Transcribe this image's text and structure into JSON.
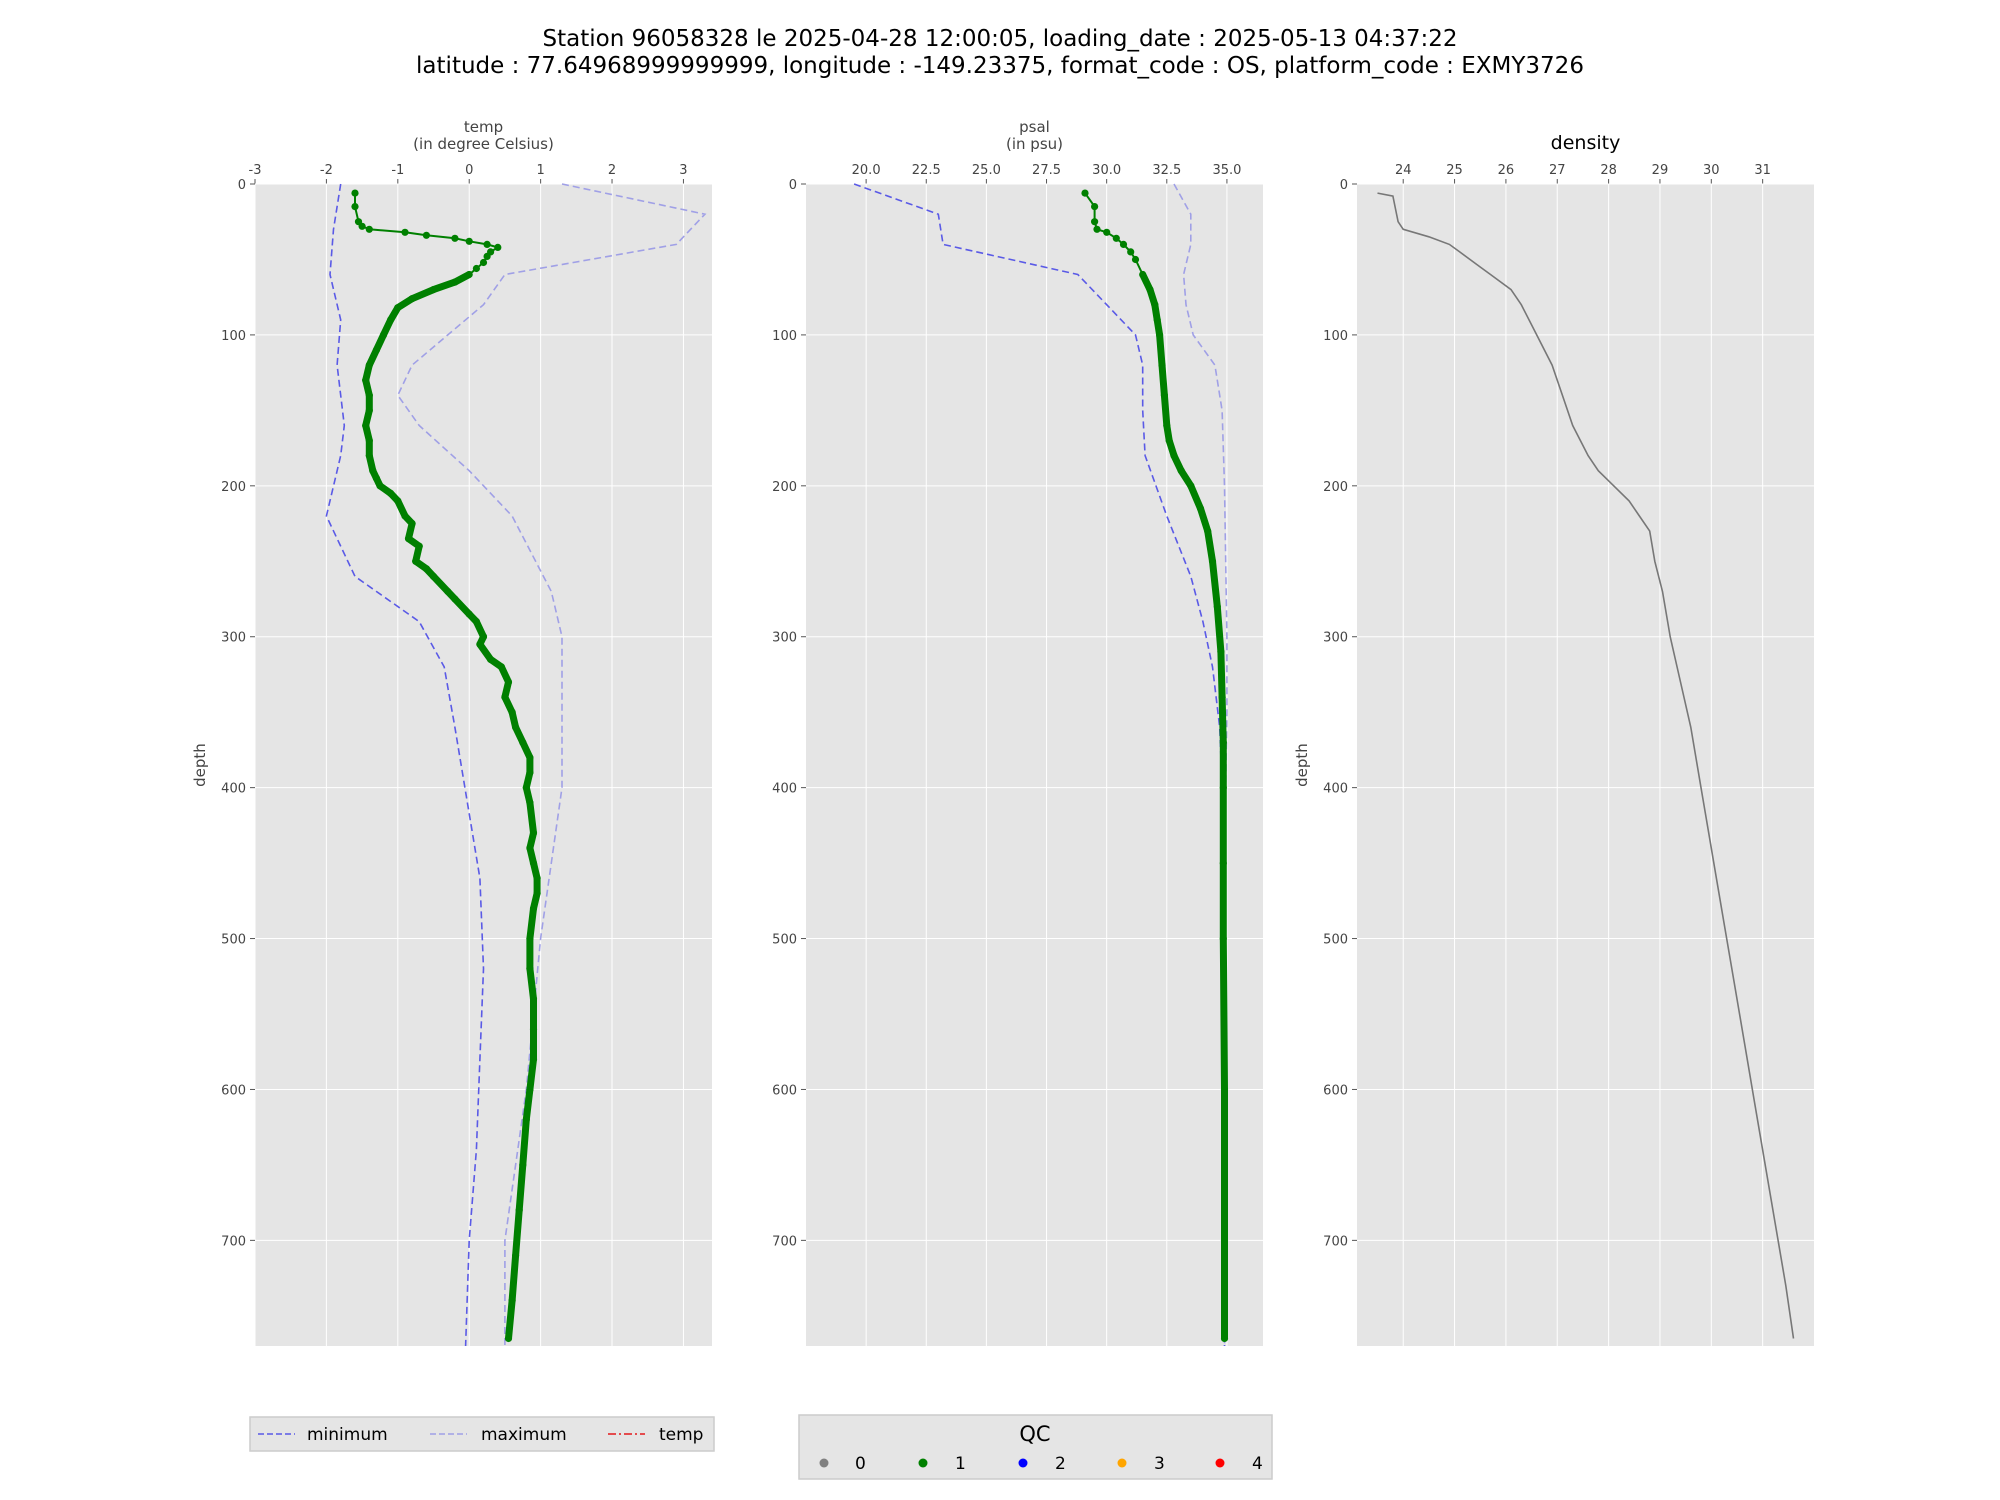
{
  "title": {
    "line1": "Station 96058328 le 2025-04-28 12:00:05, loading_date : 2025-05-13 04:37:22",
    "line2": "latitude : 77.64968999999999, longitude : -149.23375, format_code : OS, platform_code : EXMY3726"
  },
  "colors": {
    "panel_bg": "#e5e5e5",
    "grid": "#ffffff",
    "minimum": "#5a5ae6",
    "maximum": "#a0a0e6",
    "temp_line": "#e41a1c",
    "qc1": "#008000",
    "density": "#777777"
  },
  "legend_left": {
    "items": [
      {
        "label": "minimum",
        "style": "dashed",
        "color": "#5a5ae6"
      },
      {
        "label": "maximum",
        "style": "dashed",
        "color": "#a0a0e6"
      },
      {
        "label": "temp",
        "style": "dashdot",
        "color": "#e41a1c"
      }
    ]
  },
  "legend_qc": {
    "title": "QC",
    "items": [
      {
        "label": "0",
        "color": "#808080"
      },
      {
        "label": "1",
        "color": "#008000"
      },
      {
        "label": "2",
        "color": "#0000ff"
      },
      {
        "label": "3",
        "color": "#ffa500"
      },
      {
        "label": "4",
        "color": "#ff0000"
      }
    ]
  },
  "chart_data": [
    {
      "type": "line",
      "xlabel": "temp",
      "xunit": "(in degree Celsius)",
      "ylabel": "depth",
      "xlim": [
        -3,
        3.4
      ],
      "ylim": [
        770,
        0
      ],
      "xticks": [
        -3,
        -2,
        -1,
        0,
        1,
        2,
        3
      ],
      "yticks": [
        0,
        100,
        200,
        300,
        400,
        500,
        600,
        700
      ],
      "grid": true,
      "series": [
        {
          "name": "minimum",
          "style": "dashed",
          "x": [
            -1.8,
            -1.9,
            -1.95,
            -1.8,
            -1.85,
            -1.75,
            -1.8,
            -2.0,
            -1.6,
            -0.7,
            -0.35,
            -0.2,
            0.15,
            0.2,
            0.15,
            0.1,
            0.0,
            -0.05
          ],
          "y": [
            0,
            30,
            60,
            90,
            120,
            160,
            180,
            220,
            260,
            290,
            320,
            360,
            460,
            520,
            580,
            640,
            700,
            770
          ]
        },
        {
          "name": "maximum",
          "style": "dashed",
          "x": [
            1.3,
            3.3,
            2.9,
            0.5,
            0.2,
            -0.8,
            -1.0,
            -0.7,
            0.0,
            0.6,
            1.15,
            1.3,
            1.3,
            1.3,
            1.0,
            0.8,
            0.5,
            0.5
          ],
          "y": [
            0,
            20,
            40,
            60,
            80,
            120,
            140,
            160,
            190,
            220,
            270,
            300,
            360,
            400,
            500,
            600,
            700,
            770
          ]
        },
        {
          "name": "temp",
          "qc": 1,
          "x": [
            -1.6,
            -1.6,
            -1.55,
            -1.5,
            -1.4,
            -0.9,
            -0.6,
            -0.2,
            0.0,
            0.25,
            0.4,
            0.3,
            0.25,
            0.2,
            0.1,
            0.0,
            -0.2,
            -0.5,
            -0.8,
            -1.0,
            -1.1,
            -1.2,
            -1.3,
            -1.4,
            -1.45,
            -1.4,
            -1.4,
            -1.45,
            -1.4,
            -1.4,
            -1.35,
            -1.3,
            -1.25,
            -1.1,
            -1.0,
            -0.9,
            -0.8,
            -0.85,
            -0.7,
            -0.75,
            -0.6,
            -0.5,
            -0.3,
            -0.2,
            0.0,
            0.1,
            0.2,
            0.15,
            0.3,
            0.45,
            0.55,
            0.5,
            0.6,
            0.65,
            0.75,
            0.85,
            0.85,
            0.8,
            0.85,
            0.9,
            0.85,
            0.9,
            0.95,
            0.95,
            0.9,
            0.85,
            0.85,
            0.9,
            0.9,
            0.9,
            0.85,
            0.8,
            0.75,
            0.7,
            0.65,
            0.6,
            0.55
          ],
          "y": [
            6,
            15,
            25,
            28,
            30,
            32,
            34,
            36,
            38,
            40,
            42,
            45,
            48,
            52,
            56,
            60,
            65,
            70,
            76,
            82,
            90,
            100,
            110,
            120,
            130,
            140,
            150,
            160,
            170,
            180,
            190,
            195,
            200,
            205,
            210,
            220,
            225,
            235,
            240,
            250,
            255,
            260,
            270,
            275,
            285,
            290,
            300,
            305,
            315,
            320,
            330,
            340,
            350,
            360,
            370,
            380,
            390,
            400,
            410,
            430,
            440,
            450,
            460,
            470,
            480,
            500,
            520,
            540,
            560,
            580,
            600,
            620,
            650,
            680,
            710,
            740,
            765
          ]
        }
      ]
    },
    {
      "type": "line",
      "xlabel": "psal",
      "xunit": "(in psu)",
      "ylabel": "",
      "xlim": [
        17.5,
        36.5
      ],
      "ylim": [
        770,
        0
      ],
      "xticks": [
        20.0,
        22.5,
        25.0,
        27.5,
        30.0,
        32.5,
        35.0
      ],
      "xticklabels": [
        "20.0",
        "22.5",
        "25.0",
        "27.5",
        "30.0",
        "32.5",
        "35.0"
      ],
      "yticks": [
        0,
        100,
        200,
        300,
        400,
        500,
        600,
        700
      ],
      "grid": true,
      "series": [
        {
          "name": "minimum",
          "style": "dashed",
          "x": [
            19.5,
            23.0,
            23.2,
            28.8,
            30.0,
            31.2,
            31.5,
            31.5,
            31.6,
            32.5,
            33.5,
            34.0,
            34.4,
            34.7,
            34.8,
            34.9,
            34.9,
            34.9
          ],
          "y": [
            0,
            20,
            40,
            60,
            80,
            100,
            120,
            150,
            180,
            220,
            260,
            290,
            320,
            360,
            400,
            500,
            650,
            770
          ]
        },
        {
          "name": "maximum",
          "style": "dashed",
          "x": [
            32.8,
            33.5,
            33.5,
            33.2,
            33.3,
            33.6,
            34.5,
            34.8,
            34.9,
            35.0,
            35.0,
            34.95,
            34.9,
            34.9,
            34.9
          ],
          "y": [
            0,
            20,
            40,
            60,
            80,
            100,
            120,
            150,
            200,
            300,
            350,
            400,
            500,
            650,
            770
          ]
        },
        {
          "name": "psal",
          "qc": 1,
          "x": [
            29.1,
            29.5,
            29.5,
            29.6,
            30.0,
            30.4,
            30.7,
            31.0,
            31.2,
            31.5,
            31.8,
            32.0,
            32.1,
            32.2,
            32.3,
            32.4,
            32.5,
            32.6,
            32.8,
            33.1,
            33.5,
            33.9,
            34.2,
            34.4,
            34.6,
            34.75,
            34.8,
            34.85,
            34.85,
            34.85,
            34.85,
            34.9,
            34.9,
            34.9
          ],
          "y": [
            6,
            15,
            25,
            30,
            32,
            36,
            40,
            45,
            50,
            60,
            70,
            80,
            90,
            100,
            120,
            140,
            160,
            170,
            180,
            190,
            200,
            215,
            230,
            250,
            280,
            310,
            340,
            370,
            400,
            450,
            500,
            600,
            700,
            765
          ]
        }
      ]
    },
    {
      "type": "line",
      "title": "density",
      "ylabel": "depth",
      "xlim": [
        23.1,
        32.0
      ],
      "ylim": [
        770,
        0
      ],
      "xticks": [
        24,
        25,
        26,
        27,
        28,
        29,
        30,
        31
      ],
      "yticks": [
        0,
        100,
        200,
        300,
        400,
        500,
        600,
        700
      ],
      "grid": true,
      "series": [
        {
          "name": "density",
          "x": [
            23.5,
            23.8,
            23.9,
            24.0,
            24.5,
            24.9,
            25.1,
            25.5,
            25.7,
            26.1,
            26.3,
            26.6,
            26.9,
            27.1,
            27.3,
            27.6,
            27.8,
            28.1,
            28.4,
            28.6,
            28.8,
            28.9,
            29.05,
            29.2,
            29.4,
            29.6,
            29.8,
            29.95,
            30.1,
            30.25,
            30.45,
            30.65,
            30.85,
            31.05,
            31.25,
            31.45,
            31.6
          ],
          "y": [
            6,
            8,
            25,
            30,
            35,
            40,
            45,
            55,
            60,
            70,
            80,
            100,
            120,
            140,
            160,
            180,
            190,
            200,
            210,
            220,
            230,
            250,
            270,
            300,
            330,
            360,
            400,
            430,
            460,
            490,
            530,
            570,
            610,
            650,
            690,
            730,
            765
          ]
        }
      ]
    }
  ]
}
